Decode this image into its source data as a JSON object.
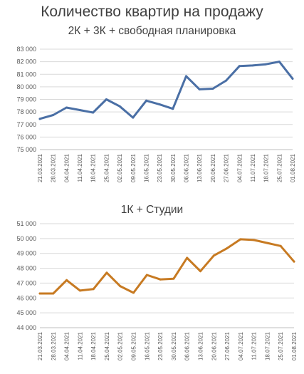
{
  "page": {
    "title": "Количество квартир на продажу"
  },
  "chart_data": [
    {
      "type": "line",
      "title": "2К + 3К + свободная планировка",
      "color": "#4a6fa5",
      "categories": [
        "21.03.2021",
        "28.03.2021",
        "04.04.2021",
        "11.04.2021",
        "18.04.2021",
        "25.04.2021",
        "02.05.2021",
        "09.05.2021",
        "16.05.2021",
        "23.05.2021",
        "30.05.2021",
        "06.06.2021",
        "13.06.2021",
        "20.06.2021",
        "27.06.2021",
        "04.07.2021",
        "11.07.2021",
        "18.07.2021",
        "25.07.2021",
        "01.08.2021"
      ],
      "values": [
        77450,
        77750,
        78350,
        78150,
        77950,
        79000,
        78450,
        77550,
        78900,
        78600,
        78250,
        80850,
        79800,
        79850,
        80500,
        81650,
        81700,
        81800,
        82000,
        80650
      ],
      "ylim": [
        75000,
        83000
      ],
      "yticks": [
        75000,
        76000,
        77000,
        78000,
        79000,
        80000,
        81000,
        82000,
        83000
      ],
      "ytick_labels": [
        "75 000",
        "76 000",
        "77 000",
        "78 000",
        "79 000",
        "80 000",
        "81 000",
        "82 000",
        "83 000"
      ],
      "grid": true
    },
    {
      "type": "line",
      "title": "1К + Студии",
      "color": "#c77a22",
      "categories": [
        "21.03.2021",
        "28.03.2021",
        "04.04.2021",
        "11.04.2021",
        "18.04.2021",
        "25.04.2021",
        "02.05.2021",
        "09.05.2021",
        "16.05.2021",
        "23.05.2021",
        "30.05.2021",
        "06.06.2021",
        "13.06.2021",
        "20.06.2021",
        "27.06.2021",
        "04.07.2021",
        "11.07.2021",
        "18.07.2021",
        "25.07.2021",
        "01.08.2021"
      ],
      "values": [
        46300,
        46300,
        47200,
        46500,
        46600,
        47700,
        46800,
        46350,
        47550,
        47250,
        47300,
        48700,
        47800,
        48850,
        49350,
        49950,
        49900,
        49700,
        49500,
        48450
      ],
      "ylim": [
        44000,
        51000
      ],
      "yticks": [
        44000,
        45000,
        46000,
        47000,
        48000,
        49000,
        50000,
        51000
      ],
      "ytick_labels": [
        "44 000",
        "45 000",
        "46 000",
        "47 000",
        "48 000",
        "49 000",
        "50 000",
        "51 000"
      ],
      "grid": true
    }
  ]
}
